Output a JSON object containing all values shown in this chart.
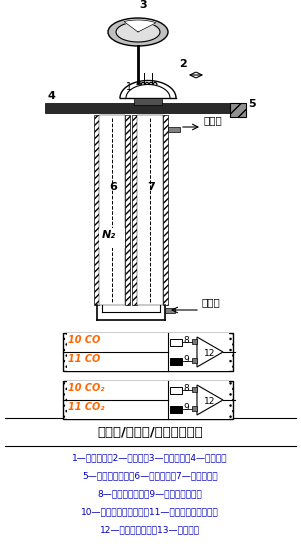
{
  "title": "单光源/双光程/双检测器配置",
  "labels_text": [
    "1—光源灯丝；2—反光镜；3—切片马达；4—切光轮；",
    "5—光路调整旋鈕；6—参比气室；7—测量气室；",
    "8—薄膜电容动片；9—薄膜电容定片；",
    "10—检测器前接收气室；11—检测器后接收气室；",
    "12—前置放大电路；13—标定气室"
  ],
  "co_label_top": "10 CO",
  "co_label_bot": "11 CO",
  "co2_label_top": "10 CO₂",
  "co2_label_bot": "11 CO₂",
  "sample_out": "样气出",
  "sample_in": "样气入",
  "n2_label": "N₂",
  "bg_color": "#ffffff",
  "black": "#000000",
  "orange_text": "#FF6600",
  "blue_label": "#0000BB"
}
